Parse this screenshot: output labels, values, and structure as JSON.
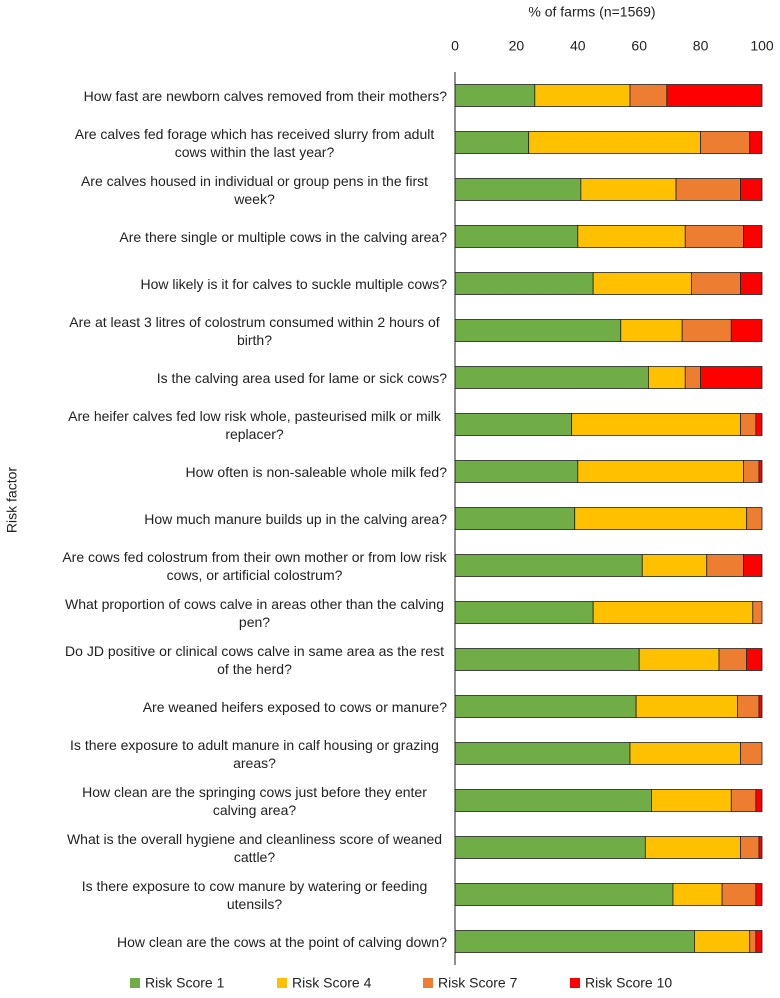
{
  "chart_data": {
    "type": "stacked-bar-horizontal",
    "x_label": "% of farms (n=1569)",
    "y_label": "Risk factor",
    "xlim": [
      0,
      100
    ],
    "xticks": [
      0,
      20,
      40,
      60,
      80,
      100
    ],
    "categories": [
      "How fast are newborn calves removed from their mothers?",
      "Are calves fed forage which has received slurry from adult cows within the last year?",
      "Are calves housed in individual or group pens in the first week?",
      "Are there single or multiple cows in the calving area?",
      "How likely is it for calves to suckle multiple cows?",
      "Are at least 3 litres of colostrum consumed within 2 hours of birth?",
      "Is the calving area used for lame or sick cows?",
      "Are heifer calves fed low risk whole, pasteurised milk or milk replacer?",
      "How often is non-saleable whole milk fed?",
      "How much manure builds up in the calving area?",
      "Are cows fed colostrum from their own mother or from low risk cows, or artificial colostrum?",
      "What proportion of cows calve in areas other than the calving pen?",
      "Do JD positive or clinical cows calve in same area as the rest of the herd?",
      "Are weaned heifers exposed to cows or manure?",
      "Is there exposure to adult manure in calf housing or grazing areas?",
      "How clean are the springing cows just before they enter calving area?",
      "What is the overall hygiene and cleanliness score of weaned cattle?",
      "Is there exposure to cow manure by watering or feeding utensils?",
      "How clean are the cows at the point of calving down?"
    ],
    "series": [
      {
        "name": "Risk Score 1",
        "color": "#70ad47",
        "values": [
          26,
          24,
          41,
          40,
          45,
          54,
          63,
          38,
          40,
          39,
          61,
          45,
          60,
          59,
          57,
          64,
          62,
          71,
          78
        ]
      },
      {
        "name": "Risk Score 4",
        "color": "#ffc000",
        "values": [
          31,
          56,
          31,
          35,
          32,
          20,
          12,
          55,
          54,
          56,
          21,
          52,
          26,
          33,
          36,
          26,
          31,
          16,
          18
        ]
      },
      {
        "name": "Risk Score 7",
        "color": "#ed7d31",
        "values": [
          12,
          16,
          21,
          19,
          16,
          16,
          5,
          5,
          5,
          5,
          12,
          3,
          9,
          7,
          7,
          8,
          6,
          11,
          2
        ]
      },
      {
        "name": "Risk Score 10",
        "color": "#ff0000",
        "values": [
          31,
          4,
          7,
          6,
          7,
          10,
          20,
          2,
          1,
          0,
          6,
          0,
          5,
          1,
          0,
          2,
          1,
          2,
          2
        ]
      }
    ],
    "legend": "bottom"
  }
}
